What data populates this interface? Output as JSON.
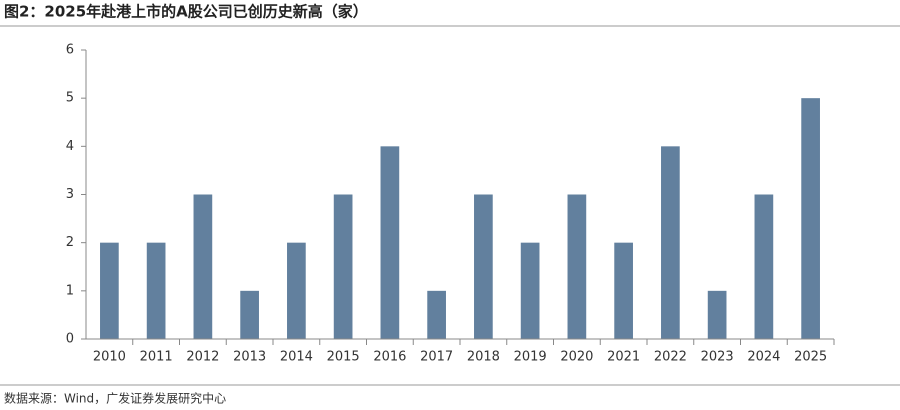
{
  "chart_data": {
    "type": "bar",
    "title": "图2：2025年赴港上市的A股公司已创历史新高（家）",
    "source": "数据来源：Wind，广发证券发展研究中心",
    "categories": [
      "2010",
      "2011",
      "2012",
      "2013",
      "2014",
      "2015",
      "2016",
      "2017",
      "2018",
      "2019",
      "2020",
      "2021",
      "2022",
      "2023",
      "2024",
      "2025"
    ],
    "values": [
      2,
      2,
      3,
      1,
      2,
      3,
      4,
      1,
      3,
      2,
      3,
      2,
      4,
      1,
      3,
      5
    ],
    "color": "#62809e",
    "ylim": [
      0,
      6
    ],
    "yticks": [
      0,
      1,
      2,
      3,
      4,
      5,
      6
    ],
    "grid": false
  }
}
